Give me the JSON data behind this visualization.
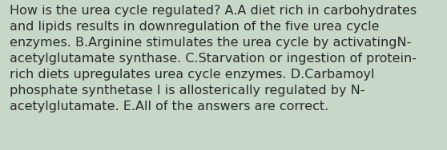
{
  "background_color": "#c8d8c8",
  "text_lines": [
    "How is the urea cycle regulated? A.A diet rich in carbohydrates",
    "and lipids results in downregulation of the five urea cycle",
    "enzymes. B.Arginine stimulates the urea cycle by activatingN-",
    "acetylglutamate synthase. C.Starvation or ingestion of protein-",
    "rich diets upregulates urea cycle enzymes. D.Carbamoyl",
    "phosphate synthetase I is allosterically regulated by N-",
    "acetylglutamate. E.All of the answers are correct."
  ],
  "text_color": "#2a2a2a",
  "font_size": 11.5,
  "fig_width": 5.58,
  "fig_height": 1.88,
  "dpi": 100
}
